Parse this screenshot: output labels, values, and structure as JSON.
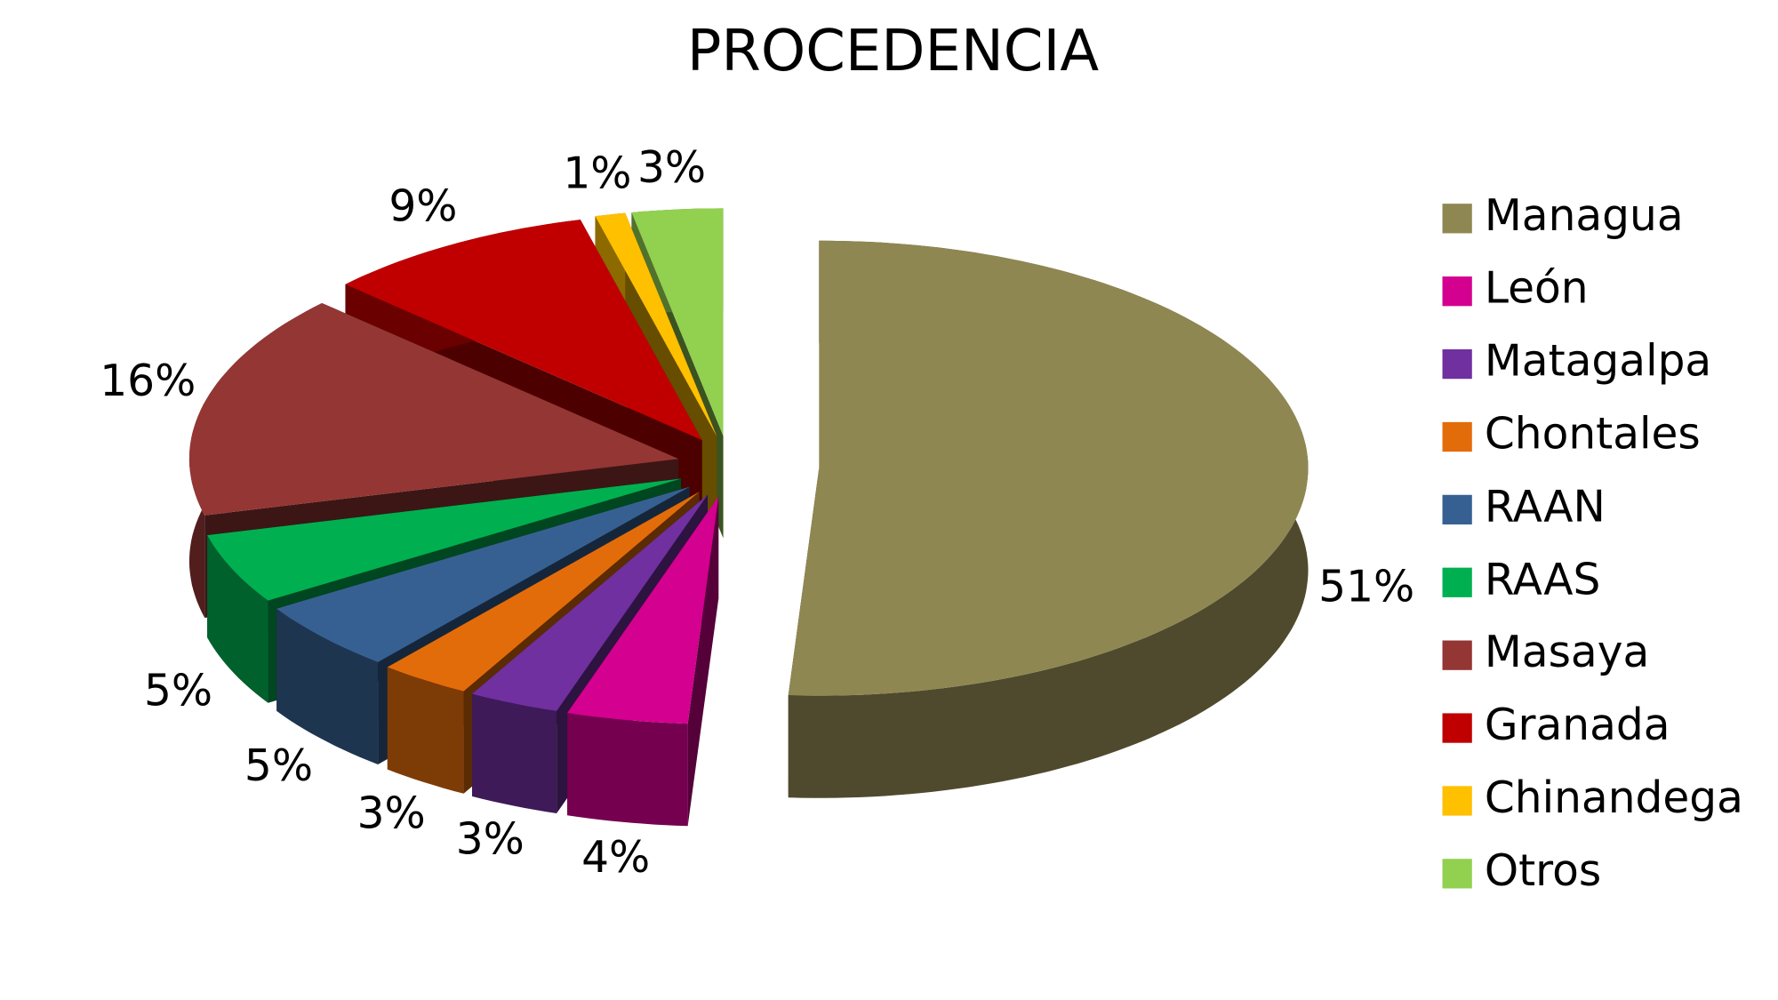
{
  "chart_data": {
    "type": "pie",
    "title": "PROCEDENCIA",
    "categories": [
      "Managua",
      "León",
      "Matagalpa",
      "Chontales",
      "RAAN",
      "RAAS",
      "Masaya",
      "Granada",
      "Chinandega",
      "Otros"
    ],
    "values": [
      51,
      4,
      3,
      3,
      5,
      5,
      16,
      9,
      1,
      3
    ],
    "value_labels": [
      "51%",
      "4%",
      "3%",
      "3%",
      "5%",
      "5%",
      "16%",
      "9%",
      "1%",
      "3%"
    ],
    "colors": [
      "#8f8752",
      "#d4008f",
      "#7030a0",
      "#e36c0a",
      "#376092",
      "#00b050",
      "#943634",
      "#c00000",
      "#ffc000",
      "#92d050"
    ],
    "legend": "right"
  }
}
